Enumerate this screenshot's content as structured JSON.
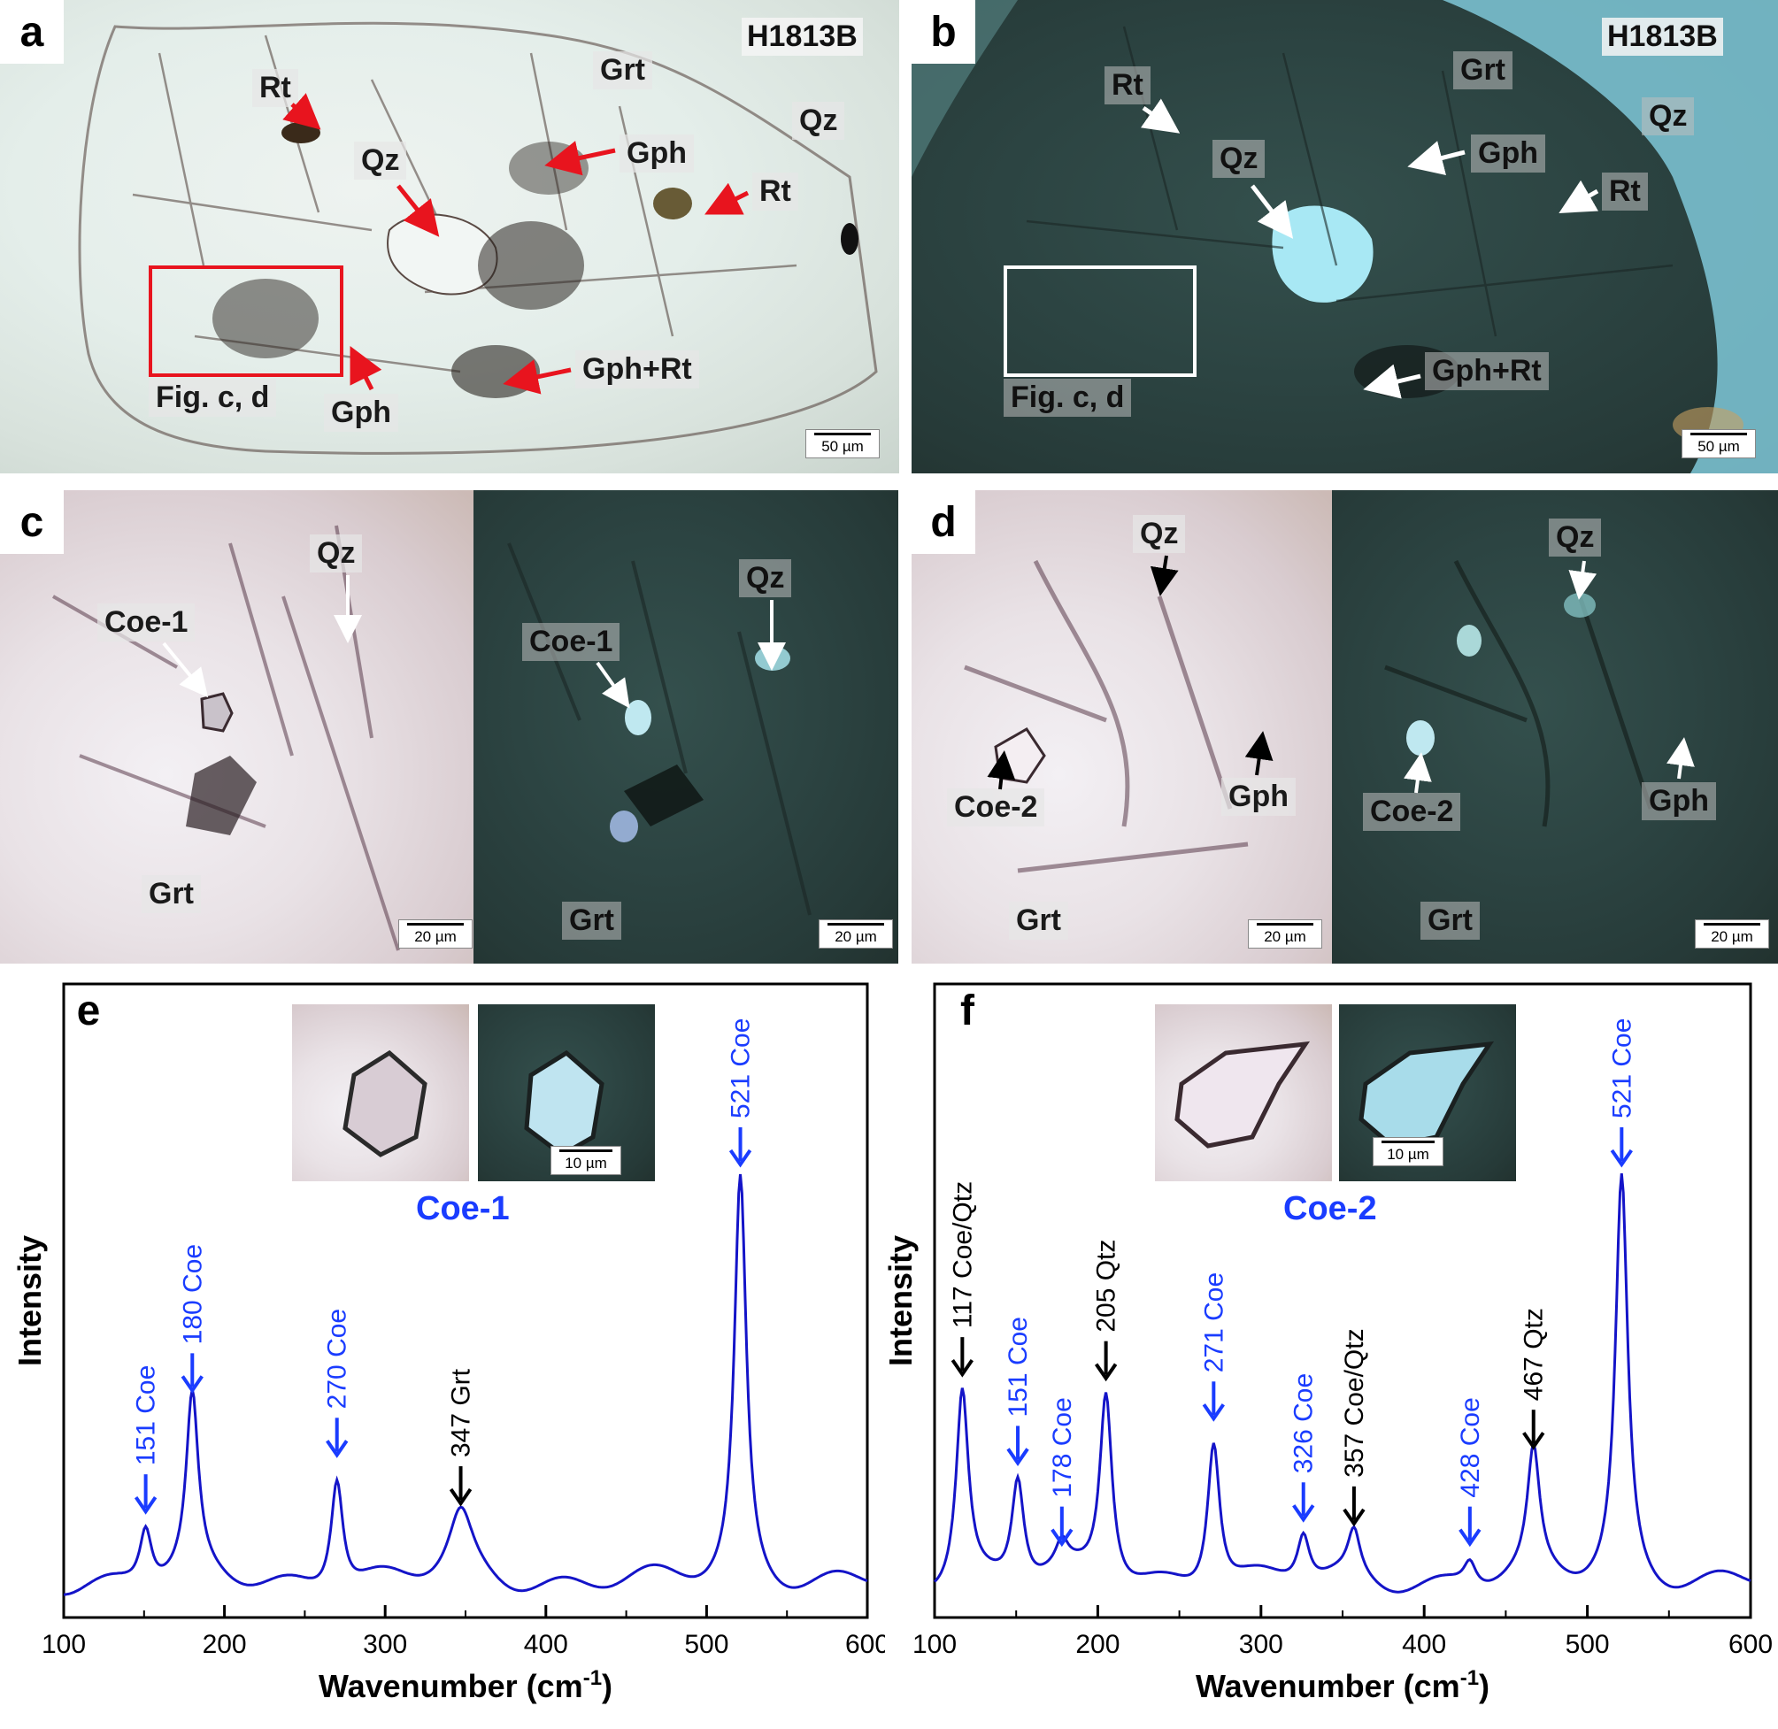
{
  "panels": {
    "a": {
      "letter": "a",
      "sample": "H1813B",
      "labels": {
        "rt1": "Rt",
        "grt": "Grt",
        "qz_right": "Qz",
        "qz": "Qz",
        "gph": "Gph",
        "rt2": "Rt",
        "fig": "Fig. c, d",
        "gph2": "Gph",
        "gph_rt": "Gph+Rt"
      },
      "scale": "50 µm"
    },
    "b": {
      "letter": "b",
      "sample": "H1813B",
      "labels": {
        "rt1": "Rt",
        "grt": "Grt",
        "qz_right": "Qz",
        "qz": "Qz",
        "gph": "Gph",
        "rt2": "Rt",
        "fig": "Fig. c, d",
        "gph_rt": "Gph+Rt"
      },
      "scale": "50 µm"
    },
    "c": {
      "letter": "c",
      "labels": {
        "qz_l": "Qz",
        "coe_l": "Coe-1",
        "grt_l": "Grt",
        "qz_r": "Qz",
        "coe_r": "Coe-1",
        "grt_r": "Grt"
      },
      "scale": "20 µm"
    },
    "d": {
      "letter": "d",
      "labels": {
        "qz_l": "Qz",
        "coe_l": "Coe-2",
        "gph_l": "Gph",
        "grt_l": "Grt",
        "qz_r": "Qz",
        "coe_r": "Coe-2",
        "gph_r": "Gph",
        "grt_r": "Grt"
      },
      "scale": "20 µm"
    },
    "e": {
      "letter": "e",
      "inset_title": "Coe-1",
      "inset_scale": "10 µm"
    },
    "f": {
      "letter": "f",
      "inset_title": "Coe-2",
      "inset_scale": "10 µm"
    }
  },
  "colors": {
    "coe": "#1a3cff",
    "spectrum": "#1414c8",
    "arrow_red": "#e8141e",
    "other": "#000000"
  },
  "chart_data": [
    {
      "type": "line",
      "panel": "e",
      "xlabel": "Wavenumber (cm",
      "xlabel_sup": "-1",
      "xlabel_end": ")",
      "ylabel": "Intensity",
      "xlim": [
        100,
        600
      ],
      "xticks": [
        100,
        200,
        300,
        400,
        500,
        600
      ],
      "peaks": [
        {
          "x": 151,
          "label": "151  Coe",
          "mineral": "Coe",
          "h": 0.14
        },
        {
          "x": 180,
          "label": "180  Coe",
          "mineral": "Coe",
          "h": 0.44
        },
        {
          "x": 270,
          "label": "270  Coe",
          "mineral": "Coe",
          "h": 0.28
        },
        {
          "x": 347,
          "label": "347  Grt",
          "mineral": "Grt",
          "h": 0.16
        },
        {
          "x": 521,
          "label": "521  Coe",
          "mineral": "Coe",
          "h": 1.0
        }
      ]
    },
    {
      "type": "line",
      "panel": "f",
      "xlabel": "Wavenumber (cm",
      "xlabel_sup": "-1",
      "xlabel_end": ")",
      "ylabel": "Intensity",
      "xlim": [
        100,
        600
      ],
      "xticks": [
        100,
        200,
        300,
        400,
        500,
        600
      ],
      "peaks": [
        {
          "x": 117,
          "label": "117  Coe/Qtz",
          "mineral": "Coe/Qtz",
          "h": 0.48
        },
        {
          "x": 151,
          "label": "151  Coe",
          "mineral": "Coe",
          "h": 0.26
        },
        {
          "x": 178,
          "label": "178  Coe",
          "mineral": "Coe",
          "h": 0.06
        },
        {
          "x": 205,
          "label": "205  Qtz",
          "mineral": "Qtz",
          "h": 0.47
        },
        {
          "x": 271,
          "label": "271  Coe",
          "mineral": "Coe",
          "h": 0.37
        },
        {
          "x": 326,
          "label": "326  Coe",
          "mineral": "Coe",
          "h": 0.12
        },
        {
          "x": 357,
          "label": "357  Coe/Qtz",
          "mineral": "Coe/Qtz",
          "h": 0.11
        },
        {
          "x": 428,
          "label": "428  Coe",
          "mineral": "Coe",
          "h": 0.06
        },
        {
          "x": 467,
          "label": "467  Qtz",
          "mineral": "Qtz",
          "h": 0.3
        },
        {
          "x": 521,
          "label": "521  Coe",
          "mineral": "Coe",
          "h": 1.0
        }
      ]
    }
  ]
}
